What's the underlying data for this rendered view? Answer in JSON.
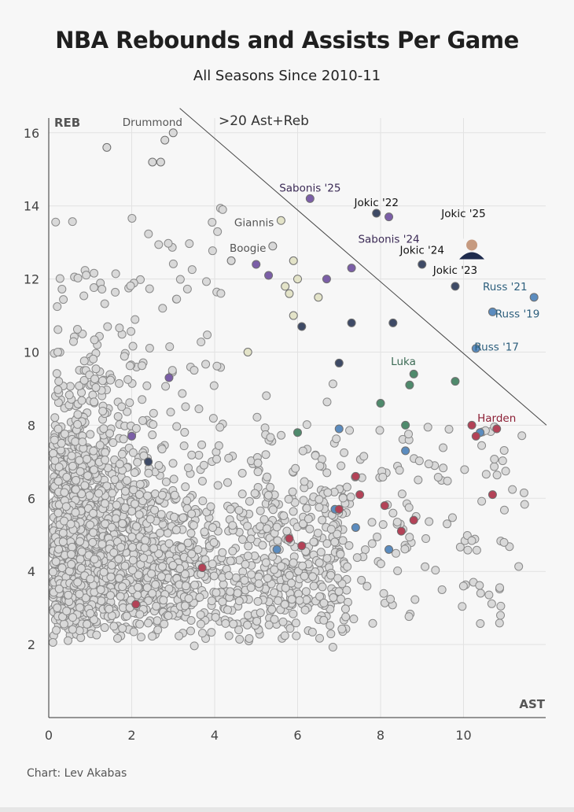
{
  "header": {
    "title": "NBA Rebounds and Assists Per Game",
    "subtitle": "All Seasons Since 2010-11"
  },
  "footer": {
    "credit": "Chart: Lev Akabas"
  },
  "chart_data": {
    "type": "scatter",
    "title": "NBA Rebounds and Assists Per Game",
    "subtitle": "All Seasons Since 2010-11",
    "xlabel": "AST",
    "ylabel": "REB",
    "xlim": [
      0,
      12
    ],
    "ylim": [
      0,
      16.5
    ],
    "xticks": [
      0,
      2,
      4,
      6,
      8,
      10
    ],
    "yticks": [
      2,
      4,
      6,
      8,
      10,
      12,
      14,
      16
    ],
    "grid": true,
    "reference_line": {
      "label": ">20 Ast+Reb",
      "equation": "AST + REB = 20"
    },
    "colors": {
      "background": "#f7f7f7",
      "default_point": "#d9d9d9",
      "default_edge": "#8a8a8a",
      "jokic": "#3e4a66",
      "sabonis": "#7b5ea7",
      "westbrook": "#5b8cbf",
      "doncic": "#4f8a6c",
      "harden": "#b34257",
      "giannis": "#e3e3c8",
      "cousins": "#d8d8d8"
    },
    "labels": [
      {
        "text": "Drummond",
        "x": 2.5,
        "y": 16.3,
        "color": "#555555"
      },
      {
        "text": "Sabonis '25",
        "x": 6.3,
        "y": 14.5,
        "color": "#3b2a55"
      },
      {
        "text": "Jokic '22",
        "x": 7.9,
        "y": 14.1,
        "color": "#111111"
      },
      {
        "text": "Jokic '25",
        "x": 10.0,
        "y": 13.8,
        "color": "#111111"
      },
      {
        "text": "Giannis",
        "x": 4.95,
        "y": 13.55,
        "color": "#555555"
      },
      {
        "text": "Sabonis '24",
        "x": 8.2,
        "y": 13.1,
        "color": "#3b2a55"
      },
      {
        "text": "Boogie",
        "x": 4.8,
        "y": 12.85,
        "color": "#555555"
      },
      {
        "text": "Jokic '24",
        "x": 9.0,
        "y": 12.8,
        "color": "#111111"
      },
      {
        "text": "Jokic '23",
        "x": 9.8,
        "y": 12.25,
        "color": "#111111"
      },
      {
        "text": "Russ '21",
        "x": 11.0,
        "y": 11.8,
        "color": "#2d5f7d"
      },
      {
        "text": "Russ '19",
        "x": 11.3,
        "y": 11.05,
        "color": "#2d5f7d"
      },
      {
        "text": "Russ '17",
        "x": 10.8,
        "y": 10.15,
        "color": "#2d5f7d"
      },
      {
        "text": "Luka",
        "x": 8.55,
        "y": 9.75,
        "color": "#3c6b55"
      },
      {
        "text": "Harden",
        "x": 10.8,
        "y": 8.2,
        "color": "#8c1f35"
      }
    ],
    "background_series": {
      "name": "All player seasons",
      "approximate_count": 2500,
      "description": "Dense cloud concentrated between 0-4 AST and 2-10 REB, thinning toward higher assists"
    },
    "highlight_series": [
      {
        "name": "Jokic",
        "points": [
          {
            "x": 2.4,
            "y": 7.0
          },
          {
            "x": 6.1,
            "y": 10.7
          },
          {
            "x": 7.0,
            "y": 9.7
          },
          {
            "x": 7.3,
            "y": 10.8
          },
          {
            "x": 8.3,
            "y": 10.8
          },
          {
            "x": 7.9,
            "y": 13.8
          },
          {
            "x": 9.8,
            "y": 11.8
          },
          {
            "x": 9.0,
            "y": 12.4
          },
          {
            "x": 10.2,
            "y": 12.8
          }
        ]
      },
      {
        "name": "Sabonis",
        "points": [
          {
            "x": 2.0,
            "y": 7.7
          },
          {
            "x": 2.9,
            "y": 9.3
          },
          {
            "x": 5.0,
            "y": 12.4
          },
          {
            "x": 5.3,
            "y": 12.1
          },
          {
            "x": 6.7,
            "y": 12.0
          },
          {
            "x": 7.3,
            "y": 12.3
          },
          {
            "x": 6.3,
            "y": 14.2
          },
          {
            "x": 8.2,
            "y": 13.7
          }
        ]
      },
      {
        "name": "Westbrook",
        "points": [
          {
            "x": 5.5,
            "y": 4.6
          },
          {
            "x": 6.9,
            "y": 5.7
          },
          {
            "x": 7.0,
            "y": 7.9
          },
          {
            "x": 7.4,
            "y": 5.2
          },
          {
            "x": 8.2,
            "y": 4.6
          },
          {
            "x": 8.6,
            "y": 7.3
          },
          {
            "x": 10.3,
            "y": 10.1
          },
          {
            "x": 10.7,
            "y": 11.1
          },
          {
            "x": 11.7,
            "y": 11.5
          },
          {
            "x": 10.4,
            "y": 7.8
          }
        ]
      },
      {
        "name": "Doncic",
        "points": [
          {
            "x": 6.0,
            "y": 7.8
          },
          {
            "x": 8.0,
            "y": 8.6
          },
          {
            "x": 8.6,
            "y": 8.0
          },
          {
            "x": 8.7,
            "y": 9.1
          },
          {
            "x": 8.8,
            "y": 9.4
          },
          {
            "x": 9.8,
            "y": 9.2
          }
        ]
      },
      {
        "name": "Harden",
        "points": [
          {
            "x": 2.1,
            "y": 3.1
          },
          {
            "x": 3.7,
            "y": 4.1
          },
          {
            "x": 5.8,
            "y": 4.9
          },
          {
            "x": 6.1,
            "y": 4.7
          },
          {
            "x": 7.0,
            "y": 5.7
          },
          {
            "x": 7.4,
            "y": 6.6
          },
          {
            "x": 7.5,
            "y": 6.1
          },
          {
            "x": 8.1,
            "y": 5.8
          },
          {
            "x": 8.5,
            "y": 5.1
          },
          {
            "x": 8.8,
            "y": 5.4
          },
          {
            "x": 10.2,
            "y": 8.0
          },
          {
            "x": 10.3,
            "y": 7.7
          },
          {
            "x": 10.8,
            "y": 7.9
          },
          {
            "x": 10.7,
            "y": 6.1
          }
        ]
      },
      {
        "name": "Giannis",
        "points": [
          {
            "x": 5.6,
            "y": 13.6
          },
          {
            "x": 5.9,
            "y": 12.5
          },
          {
            "x": 5.7,
            "y": 11.8
          },
          {
            "x": 6.0,
            "y": 12.0
          },
          {
            "x": 5.8,
            "y": 11.6
          },
          {
            "x": 5.9,
            "y": 11.0
          },
          {
            "x": 6.5,
            "y": 11.5
          },
          {
            "x": 4.8,
            "y": 10.0
          }
        ]
      },
      {
        "name": "Cousins",
        "points": [
          {
            "x": 5.4,
            "y": 12.9
          },
          {
            "x": 4.4,
            "y": 12.5
          }
        ]
      },
      {
        "name": "Drummond",
        "points": [
          {
            "x": 3.0,
            "y": 16.0
          },
          {
            "x": 2.8,
            "y": 15.8
          },
          {
            "x": 2.7,
            "y": 15.2
          },
          {
            "x": 2.5,
            "y": 15.2
          },
          {
            "x": 1.4,
            "y": 15.6
          }
        ]
      }
    ]
  }
}
